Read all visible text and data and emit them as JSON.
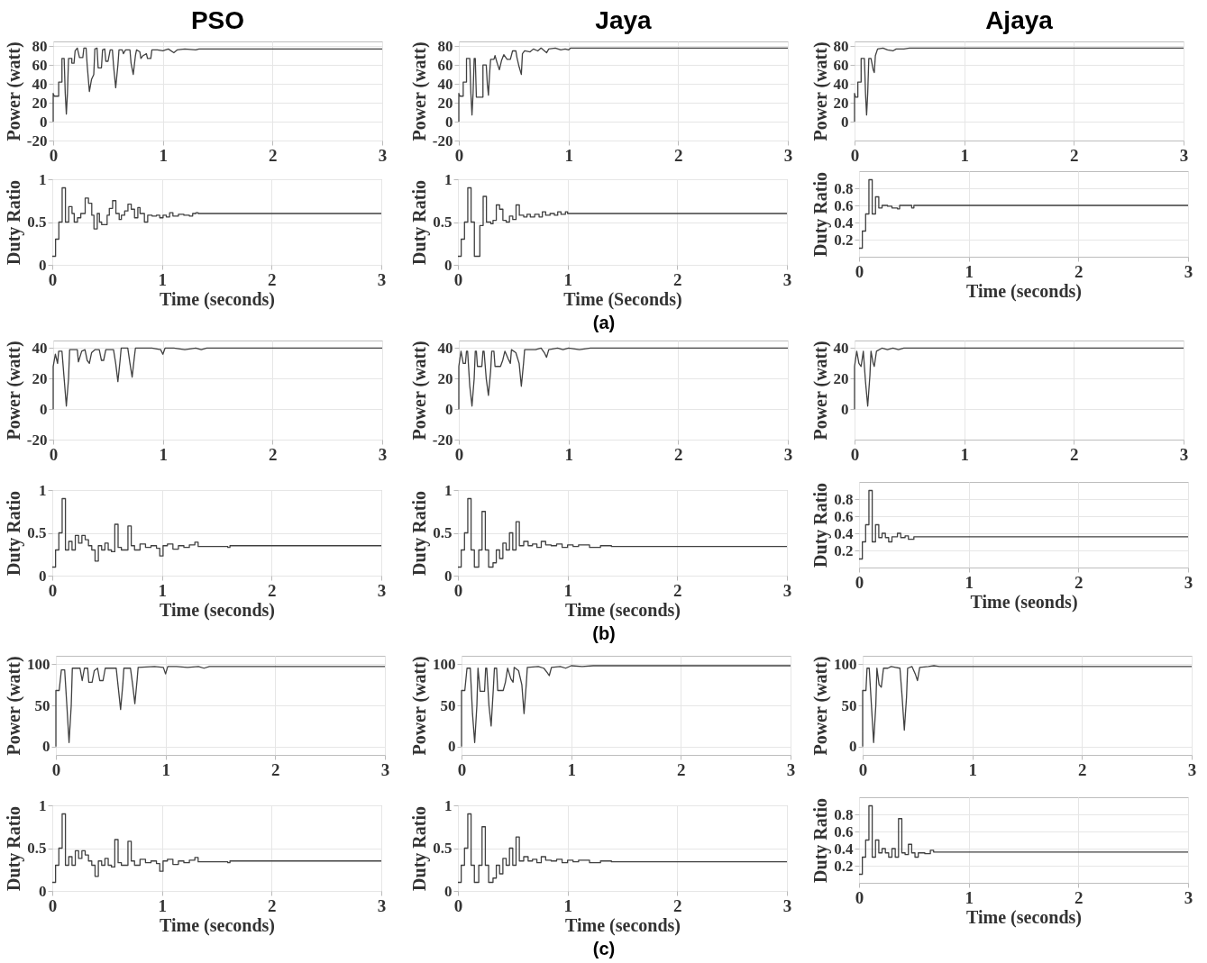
{
  "chart_data": [
    {
      "type": "line",
      "title": "PSO",
      "ylabel": "Power (watt)",
      "color": "#404040",
      "xlim": [
        0,
        3
      ],
      "xticks": [
        0,
        1,
        2,
        3
      ],
      "ylim": [
        -20,
        85
      ],
      "yticks": [
        -20,
        0,
        20,
        40,
        60,
        80
      ],
      "grid": true,
      "x": [
        0,
        0,
        0.01,
        0.05,
        0.05,
        0.08,
        0.08,
        0.1,
        0.11,
        0.12,
        0.13,
        0.14,
        0.17,
        0.17,
        0.19,
        0.2,
        0.22,
        0.24,
        0.27,
        0.28,
        0.3,
        0.31,
        0.33,
        0.35,
        0.37,
        0.38,
        0.4,
        0.41,
        0.44,
        0.45,
        0.47,
        0.48,
        0.5,
        0.52,
        0.54,
        0.55,
        0.57,
        0.59,
        0.6,
        0.63,
        0.64,
        0.66,
        0.7,
        0.71,
        0.73,
        0.75,
        0.76,
        0.79,
        0.8,
        0.82,
        0.85,
        0.86,
        0.89,
        0.9,
        0.95,
        1,
        1.05,
        1.1,
        1.13,
        1.2,
        1.3,
        1.33,
        3
      ],
      "values": [
        0,
        30,
        27,
        27,
        42,
        42,
        67,
        67,
        30,
        8,
        30,
        67,
        67,
        62,
        62,
        75,
        78,
        68,
        68,
        78,
        78,
        60,
        32,
        45,
        50,
        77,
        78,
        57,
        57,
        76,
        77,
        64,
        64,
        76,
        76,
        60,
        36,
        60,
        76,
        76,
        72,
        76,
        76,
        62,
        50,
        70,
        76,
        74,
        67,
        70,
        72,
        67,
        67,
        76,
        76,
        75,
        77,
        73,
        76,
        77,
        76,
        77,
        77
      ]
    },
    {
      "type": "line",
      "title": "Jaya",
      "ylabel": "Power (watt)",
      "color": "#404040",
      "xlim": [
        0,
        3
      ],
      "xticks": [
        0,
        1,
        2,
        3
      ],
      "ylim": [
        -20,
        85
      ],
      "yticks": [
        -20,
        0,
        20,
        40,
        60,
        80
      ],
      "grid": true,
      "x": [
        0,
        0,
        0.01,
        0.04,
        0.04,
        0.07,
        0.07,
        0.1,
        0.11,
        0.12,
        0.13,
        0.14,
        0.15,
        0.16,
        0.22,
        0.22,
        0.25,
        0.26,
        0.27,
        0.28,
        0.29,
        0.32,
        0.33,
        0.35,
        0.37,
        0.39,
        0.41,
        0.44,
        0.47,
        0.49,
        0.52,
        0.53,
        0.55,
        0.57,
        0.58,
        0.6,
        0.65,
        0.68,
        0.72,
        0.75,
        0.8,
        0.82,
        0.88,
        0.93,
        0.97,
        1,
        1.02,
        3
      ],
      "values": [
        0,
        30,
        27,
        27,
        42,
        42,
        67,
        67,
        30,
        7,
        30,
        67,
        67,
        26,
        26,
        60,
        60,
        40,
        28,
        50,
        66,
        66,
        70,
        62,
        55,
        65,
        71,
        66,
        66,
        75,
        75,
        68,
        58,
        50,
        72,
        75,
        74,
        77,
        75,
        78,
        73,
        77,
        78,
        76,
        77,
        76,
        78,
        78
      ]
    },
    {
      "type": "line",
      "title": "Ajaya",
      "ylabel": "Power (watt)",
      "color": "#404040",
      "xlim": [
        0,
        3
      ],
      "xticks": [
        0,
        1,
        2,
        3
      ],
      "ylim": [
        -20,
        85
      ],
      "yticks": [
        0,
        20,
        40,
        60,
        80
      ],
      "grid": true,
      "x": [
        0,
        0,
        0.01,
        0.03,
        0.03,
        0.06,
        0.06,
        0.09,
        0.1,
        0.11,
        0.12,
        0.13,
        0.15,
        0.17,
        0.18,
        0.19,
        0.21,
        0.26,
        0.3,
        0.35,
        0.38,
        0.45,
        0.5,
        3
      ],
      "values": [
        0,
        30,
        26,
        26,
        42,
        42,
        67,
        67,
        30,
        7,
        30,
        67,
        67,
        55,
        52,
        70,
        77,
        78,
        76,
        75,
        77,
        77,
        78,
        78
      ]
    },
    {
      "type": "step",
      "ylabel": "Duty Ratio",
      "xlabel": "Time (seconds)",
      "color": "#404040",
      "xlim": [
        0,
        3
      ],
      "xticks": [
        0,
        1,
        2,
        3
      ],
      "ylim": [
        0,
        1
      ],
      "yticks": [
        0,
        0.5,
        1
      ],
      "grid": true,
      "x": [
        0,
        0.03,
        0.06,
        0.09,
        0.12,
        0.15,
        0.18,
        0.2,
        0.23,
        0.26,
        0.3,
        0.33,
        0.36,
        0.38,
        0.41,
        0.43,
        0.45,
        0.5,
        0.52,
        0.55,
        0.58,
        0.61,
        0.63,
        0.66,
        0.69,
        0.72,
        0.75,
        0.78,
        0.8,
        0.84,
        0.87,
        0.91,
        0.95,
        0.98,
        1.01,
        1.04,
        1.07,
        1.1,
        1.15,
        1.2,
        1.25,
        1.28,
        1.31,
        1.33,
        3
      ],
      "values": [
        0.1,
        0.3,
        0.5,
        0.9,
        0.5,
        0.68,
        0.6,
        0.5,
        0.55,
        0.6,
        0.78,
        0.72,
        0.58,
        0.42,
        0.6,
        0.5,
        0.47,
        0.58,
        0.66,
        0.75,
        0.6,
        0.53,
        0.58,
        0.63,
        0.71,
        0.65,
        0.55,
        0.67,
        0.6,
        0.5,
        0.58,
        0.57,
        0.58,
        0.55,
        0.58,
        0.56,
        0.61,
        0.57,
        0.59,
        0.58,
        0.57,
        0.6,
        0.61,
        0.6,
        0.6
      ]
    },
    {
      "type": "step",
      "ylabel": "Duty Ratio",
      "xlabel": "Time (Seconds)",
      "annotations": [
        "(a)"
      ],
      "color": "#404040",
      "xlim": [
        0,
        3
      ],
      "xticks": [
        0,
        1,
        2,
        3
      ],
      "ylim": [
        0,
        1
      ],
      "yticks": [
        0,
        0.5,
        1
      ],
      "grid": true,
      "x": [
        0,
        0.03,
        0.06,
        0.09,
        0.12,
        0.15,
        0.2,
        0.23,
        0.26,
        0.3,
        0.32,
        0.35,
        0.38,
        0.41,
        0.44,
        0.47,
        0.5,
        0.53,
        0.56,
        0.6,
        0.63,
        0.66,
        0.7,
        0.74,
        0.77,
        0.8,
        0.84,
        0.88,
        0.91,
        0.94,
        0.98,
        1,
        3
      ],
      "values": [
        0.1,
        0.3,
        0.5,
        0.9,
        0.5,
        0.1,
        0.46,
        0.8,
        0.5,
        0.48,
        0.52,
        0.7,
        0.65,
        0.52,
        0.5,
        0.57,
        0.53,
        0.7,
        0.58,
        0.56,
        0.59,
        0.56,
        0.59,
        0.56,
        0.62,
        0.58,
        0.6,
        0.58,
        0.62,
        0.59,
        0.62,
        0.6,
        0.6
      ]
    },
    {
      "type": "step",
      "ylabel": "Duty Ratio",
      "xlabel": "Time (seconds)",
      "color": "#404040",
      "xlim": [
        0,
        3
      ],
      "xticks": [
        0,
        1,
        2,
        3
      ],
      "ylim": [
        0,
        1
      ],
      "yticks": [
        0.2,
        0.4,
        0.6,
        0.8
      ],
      "grid": true,
      "x": [
        0,
        0.03,
        0.06,
        0.09,
        0.12,
        0.15,
        0.18,
        0.21,
        0.26,
        0.3,
        0.35,
        0.37,
        0.45,
        0.48,
        0.5,
        3
      ],
      "values": [
        0.1,
        0.3,
        0.5,
        0.9,
        0.5,
        0.7,
        0.57,
        0.6,
        0.59,
        0.57,
        0.56,
        0.6,
        0.6,
        0.57,
        0.6,
        0.6
      ]
    },
    {
      "type": "line",
      "ylabel": "Power (watt)",
      "color": "#404040",
      "xlim": [
        0,
        3
      ],
      "xticks": [
        0,
        1,
        2,
        3
      ],
      "ylim": [
        -20,
        45
      ],
      "yticks": [
        -20,
        0,
        20,
        40
      ],
      "grid": true,
      "x": [
        0,
        0,
        0.02,
        0.04,
        0.05,
        0.08,
        0.1,
        0.12,
        0.14,
        0.15,
        0.22,
        0.23,
        0.26,
        0.29,
        0.31,
        0.33,
        0.35,
        0.38,
        0.42,
        0.44,
        0.46,
        0.48,
        0.55,
        0.57,
        0.59,
        0.61,
        0.62,
        0.68,
        0.7,
        0.72,
        0.74,
        0.75,
        0.9,
        0.98,
        1,
        1.02,
        1.1,
        1.2,
        1.3,
        1.35,
        1.4,
        3
      ],
      "values": [
        0,
        28,
        36,
        30,
        38,
        38,
        20,
        2,
        20,
        39,
        39,
        31,
        38,
        39,
        32,
        30,
        37,
        39,
        39,
        32,
        32,
        39,
        39,
        30,
        18,
        32,
        40,
        40,
        30,
        21,
        34,
        40,
        40,
        39,
        36,
        40,
        40,
        39,
        40,
        39,
        40,
        40
      ]
    },
    {
      "type": "line",
      "ylabel": "Power (watt)",
      "color": "#404040",
      "xlim": [
        0,
        3
      ],
      "xticks": [
        0,
        1,
        2,
        3
      ],
      "ylim": [
        -20,
        45
      ],
      "yticks": [
        -20,
        0,
        20,
        40
      ],
      "grid": true,
      "x": [
        0,
        0,
        0.02,
        0.04,
        0.06,
        0.07,
        0.08,
        0.1,
        0.12,
        0.14,
        0.15,
        0.16,
        0.17,
        0.21,
        0.22,
        0.23,
        0.25,
        0.27,
        0.29,
        0.3,
        0.32,
        0.33,
        0.38,
        0.4,
        0.42,
        0.45,
        0.47,
        0.48,
        0.52,
        0.55,
        0.57,
        0.59,
        0.6,
        0.7,
        0.75,
        0.78,
        0.8,
        0.82,
        0.9,
        0.95,
        1,
        1.1,
        1.2,
        3
      ],
      "values": [
        0,
        28,
        38,
        30,
        30,
        38,
        38,
        15,
        2,
        20,
        38,
        38,
        28,
        28,
        38,
        38,
        20,
        9,
        25,
        38,
        38,
        28,
        28,
        32,
        38,
        33,
        30,
        39,
        37,
        30,
        15,
        30,
        39,
        39,
        40,
        37,
        34,
        39,
        40,
        39,
        40,
        39,
        40,
        40
      ]
    },
    {
      "type": "line",
      "ylabel": "Power (watt)",
      "color": "#404040",
      "xlim": [
        0,
        3
      ],
      "xticks": [
        0,
        1,
        2,
        3
      ],
      "ylim": [
        -20,
        45
      ],
      "yticks": [
        0,
        20,
        40
      ],
      "grid": true,
      "x": [
        0,
        0,
        0.02,
        0.04,
        0.06,
        0.08,
        0.1,
        0.12,
        0.14,
        0.15,
        0.17,
        0.18,
        0.2,
        0.25,
        0.3,
        0.35,
        0.4,
        0.45,
        3
      ],
      "values": [
        0,
        28,
        38,
        30,
        28,
        38,
        18,
        2,
        22,
        38,
        30,
        28,
        38,
        40,
        39,
        40,
        39,
        40,
        40
      ]
    },
    {
      "type": "step",
      "ylabel": "Duty Ratio",
      "xlabel": "Time (seconds)",
      "color": "#404040",
      "xlim": [
        0,
        3
      ],
      "xticks": [
        0,
        1,
        2,
        3
      ],
      "ylim": [
        0,
        1
      ],
      "yticks": [
        0,
        0.5,
        1
      ],
      "grid": true,
      "x": [
        0,
        0.03,
        0.06,
        0.09,
        0.12,
        0.15,
        0.18,
        0.21,
        0.24,
        0.27,
        0.3,
        0.33,
        0.36,
        0.39,
        0.42,
        0.45,
        0.48,
        0.51,
        0.54,
        0.57,
        0.6,
        0.63,
        0.66,
        0.69,
        0.72,
        0.75,
        0.8,
        0.85,
        0.9,
        0.95,
        0.98,
        1.01,
        1.05,
        1.1,
        1.15,
        1.2,
        1.25,
        1.3,
        1.33,
        1.6,
        1.62,
        3
      ],
      "values": [
        0.1,
        0.3,
        0.5,
        0.9,
        0.3,
        0.4,
        0.3,
        0.47,
        0.38,
        0.47,
        0.42,
        0.35,
        0.3,
        0.17,
        0.35,
        0.3,
        0.38,
        0.3,
        0.28,
        0.6,
        0.33,
        0.3,
        0.3,
        0.58,
        0.35,
        0.3,
        0.37,
        0.33,
        0.35,
        0.32,
        0.23,
        0.35,
        0.37,
        0.31,
        0.35,
        0.33,
        0.36,
        0.39,
        0.34,
        0.33,
        0.35,
        0.35
      ]
    },
    {
      "type": "step",
      "ylabel": "Duty Ratio",
      "xlabel": "Time (seconds)",
      "annotations": [
        "(b)"
      ],
      "color": "#404040",
      "xlim": [
        0,
        3
      ],
      "xticks": [
        0,
        1,
        2,
        3
      ],
      "ylim": [
        0,
        1
      ],
      "yticks": [
        0,
        0.5,
        1
      ],
      "grid": true,
      "x": [
        0,
        0.03,
        0.06,
        0.09,
        0.12,
        0.15,
        0.19,
        0.22,
        0.25,
        0.28,
        0.32,
        0.35,
        0.38,
        0.41,
        0.44,
        0.47,
        0.5,
        0.53,
        0.56,
        0.6,
        0.64,
        0.68,
        0.72,
        0.76,
        0.8,
        0.85,
        0.9,
        0.95,
        1,
        1.05,
        1.1,
        1.2,
        1.3,
        1.4,
        3
      ],
      "values": [
        0.1,
        0.3,
        0.5,
        0.9,
        0.3,
        0.1,
        0.3,
        0.75,
        0.3,
        0.1,
        0.15,
        0.3,
        0.2,
        0.38,
        0.3,
        0.5,
        0.3,
        0.63,
        0.35,
        0.4,
        0.35,
        0.37,
        0.33,
        0.4,
        0.36,
        0.35,
        0.37,
        0.33,
        0.36,
        0.34,
        0.36,
        0.33,
        0.35,
        0.34,
        0.34
      ]
    },
    {
      "type": "step",
      "ylabel": "Duty Ratio",
      "xlabel": "Time (seonds)",
      "color": "#404040",
      "xlim": [
        0,
        3
      ],
      "xticks": [
        0,
        1,
        2,
        3
      ],
      "ylim": [
        0,
        1
      ],
      "yticks": [
        0.2,
        0.4,
        0.6,
        0.8
      ],
      "grid": true,
      "x": [
        0,
        0.03,
        0.06,
        0.09,
        0.12,
        0.15,
        0.18,
        0.21,
        0.24,
        0.27,
        0.3,
        0.35,
        0.38,
        0.42,
        0.45,
        0.5,
        3
      ],
      "values": [
        0.1,
        0.3,
        0.5,
        0.9,
        0.3,
        0.5,
        0.35,
        0.4,
        0.35,
        0.3,
        0.36,
        0.4,
        0.35,
        0.37,
        0.33,
        0.36,
        0.36
      ]
    },
    {
      "type": "line",
      "ylabel": "Power (watt)",
      "color": "#404040",
      "xlim": [
        0,
        3
      ],
      "xticks": [
        0,
        1,
        2,
        3
      ],
      "ylim": [
        -10,
        110
      ],
      "yticks": [
        0,
        50,
        100
      ],
      "grid": true,
      "x": [
        0,
        0,
        0.03,
        0.05,
        0.08,
        0.1,
        0.12,
        0.14,
        0.15,
        0.22,
        0.24,
        0.26,
        0.29,
        0.3,
        0.33,
        0.35,
        0.38,
        0.4,
        0.43,
        0.45,
        0.55,
        0.57,
        0.59,
        0.61,
        0.62,
        0.68,
        0.7,
        0.72,
        0.74,
        0.75,
        0.9,
        0.98,
        1,
        1.02,
        1.1,
        1.2,
        1.3,
        1.35,
        1.4,
        3
      ],
      "values": [
        0,
        68,
        68,
        93,
        93,
        50,
        5,
        50,
        95,
        95,
        80,
        95,
        95,
        78,
        78,
        92,
        95,
        80,
        80,
        95,
        95,
        70,
        45,
        75,
        95,
        95,
        75,
        52,
        80,
        96,
        97,
        96,
        88,
        97,
        97,
        96,
        97,
        95,
        97,
        97
      ]
    },
    {
      "type": "line",
      "ylabel": "Power (watt)",
      "color": "#404040",
      "xlim": [
        0,
        3
      ],
      "xticks": [
        0,
        1,
        2,
        3
      ],
      "ylim": [
        -10,
        110
      ],
      "yticks": [
        0,
        50,
        100
      ],
      "grid": true,
      "x": [
        0,
        0,
        0.03,
        0.05,
        0.08,
        0.1,
        0.12,
        0.14,
        0.15,
        0.17,
        0.21,
        0.22,
        0.23,
        0.25,
        0.27,
        0.29,
        0.3,
        0.32,
        0.33,
        0.38,
        0.4,
        0.42,
        0.45,
        0.47,
        0.48,
        0.52,
        0.55,
        0.57,
        0.59,
        0.6,
        0.7,
        0.75,
        0.78,
        0.8,
        0.82,
        0.9,
        0.95,
        1,
        1.1,
        1.2,
        3
      ],
      "values": [
        0,
        68,
        68,
        95,
        95,
        40,
        5,
        50,
        95,
        67,
        67,
        95,
        95,
        50,
        25,
        70,
        95,
        95,
        68,
        68,
        78,
        95,
        82,
        78,
        96,
        92,
        75,
        40,
        75,
        96,
        97,
        95,
        90,
        86,
        96,
        97,
        95,
        98,
        97,
        98,
        98
      ]
    },
    {
      "type": "line",
      "ylabel": "Power (watt)",
      "color": "#404040",
      "xlim": [
        0,
        3
      ],
      "xticks": [
        0,
        1,
        2,
        3
      ],
      "ylim": [
        -10,
        110
      ],
      "yticks": [
        0,
        50,
        100
      ],
      "grid": true,
      "x": [
        0,
        0,
        0.03,
        0.04,
        0.06,
        0.08,
        0.1,
        0.12,
        0.13,
        0.15,
        0.17,
        0.19,
        0.23,
        0.26,
        0.3,
        0.34,
        0.36,
        0.38,
        0.4,
        0.41,
        0.45,
        0.48,
        0.5,
        0.52,
        0.6,
        0.65,
        0.7,
        3
      ],
      "values": [
        0,
        68,
        68,
        95,
        95,
        50,
        5,
        50,
        95,
        75,
        72,
        95,
        95,
        97,
        96,
        95,
        60,
        20,
        60,
        95,
        97,
        88,
        80,
        96,
        97,
        98,
        97,
        97
      ]
    },
    {
      "type": "step",
      "ylabel": "Duty Ratio",
      "xlabel": "Time (seconds)",
      "color": "#404040",
      "xlim": [
        0,
        3
      ],
      "xticks": [
        0,
        1,
        2,
        3
      ],
      "ylim": [
        0,
        1
      ],
      "yticks": [
        0,
        0.5,
        1
      ],
      "grid": true,
      "x": [
        0,
        0.03,
        0.06,
        0.09,
        0.12,
        0.15,
        0.18,
        0.21,
        0.24,
        0.27,
        0.3,
        0.33,
        0.36,
        0.39,
        0.42,
        0.45,
        0.48,
        0.51,
        0.54,
        0.57,
        0.6,
        0.63,
        0.66,
        0.69,
        0.72,
        0.75,
        0.8,
        0.85,
        0.9,
        0.95,
        0.98,
        1.01,
        1.05,
        1.1,
        1.15,
        1.2,
        1.25,
        1.3,
        1.33,
        1.6,
        1.62,
        3
      ],
      "values": [
        0.1,
        0.3,
        0.5,
        0.9,
        0.3,
        0.4,
        0.3,
        0.47,
        0.38,
        0.47,
        0.42,
        0.35,
        0.3,
        0.17,
        0.35,
        0.3,
        0.38,
        0.3,
        0.28,
        0.6,
        0.33,
        0.3,
        0.3,
        0.58,
        0.35,
        0.3,
        0.37,
        0.33,
        0.35,
        0.32,
        0.23,
        0.35,
        0.37,
        0.31,
        0.35,
        0.33,
        0.36,
        0.39,
        0.34,
        0.33,
        0.35,
        0.35
      ]
    },
    {
      "type": "step",
      "ylabel": "Duty Ratio",
      "xlabel": "Time (seconds)",
      "annotations": [
        "(c)"
      ],
      "color": "#404040",
      "xlim": [
        0,
        3
      ],
      "xticks": [
        0,
        1,
        2,
        3
      ],
      "ylim": [
        0,
        1
      ],
      "yticks": [
        0,
        0.5,
        1
      ],
      "grid": true,
      "x": [
        0,
        0.03,
        0.06,
        0.09,
        0.12,
        0.15,
        0.19,
        0.22,
        0.25,
        0.28,
        0.32,
        0.35,
        0.38,
        0.41,
        0.44,
        0.47,
        0.5,
        0.53,
        0.56,
        0.6,
        0.64,
        0.68,
        0.72,
        0.76,
        0.8,
        0.85,
        0.9,
        0.95,
        1,
        1.05,
        1.1,
        1.2,
        1.3,
        1.4,
        3
      ],
      "values": [
        0.1,
        0.3,
        0.5,
        0.9,
        0.3,
        0.1,
        0.3,
        0.75,
        0.3,
        0.1,
        0.15,
        0.3,
        0.2,
        0.38,
        0.3,
        0.5,
        0.3,
        0.63,
        0.35,
        0.4,
        0.35,
        0.37,
        0.33,
        0.4,
        0.36,
        0.35,
        0.37,
        0.33,
        0.36,
        0.34,
        0.36,
        0.33,
        0.35,
        0.34,
        0.34
      ]
    },
    {
      "type": "step",
      "ylabel": "Duty Ratio",
      "xlabel": "Time (seconds)",
      "color": "#404040",
      "xlim": [
        0,
        3
      ],
      "xticks": [
        0,
        1,
        2,
        3
      ],
      "ylim": [
        0,
        1
      ],
      "yticks": [
        0.2,
        0.4,
        0.6,
        0.8
      ],
      "grid": true,
      "x": [
        0,
        0.03,
        0.06,
        0.09,
        0.12,
        0.15,
        0.18,
        0.21,
        0.24,
        0.27,
        0.3,
        0.33,
        0.36,
        0.39,
        0.42,
        0.45,
        0.48,
        0.51,
        0.54,
        0.6,
        0.65,
        0.68,
        3
      ],
      "values": [
        0.1,
        0.3,
        0.5,
        0.9,
        0.3,
        0.5,
        0.35,
        0.4,
        0.35,
        0.3,
        0.4,
        0.3,
        0.75,
        0.35,
        0.33,
        0.45,
        0.35,
        0.3,
        0.35,
        0.34,
        0.38,
        0.36,
        0.36
      ]
    }
  ]
}
